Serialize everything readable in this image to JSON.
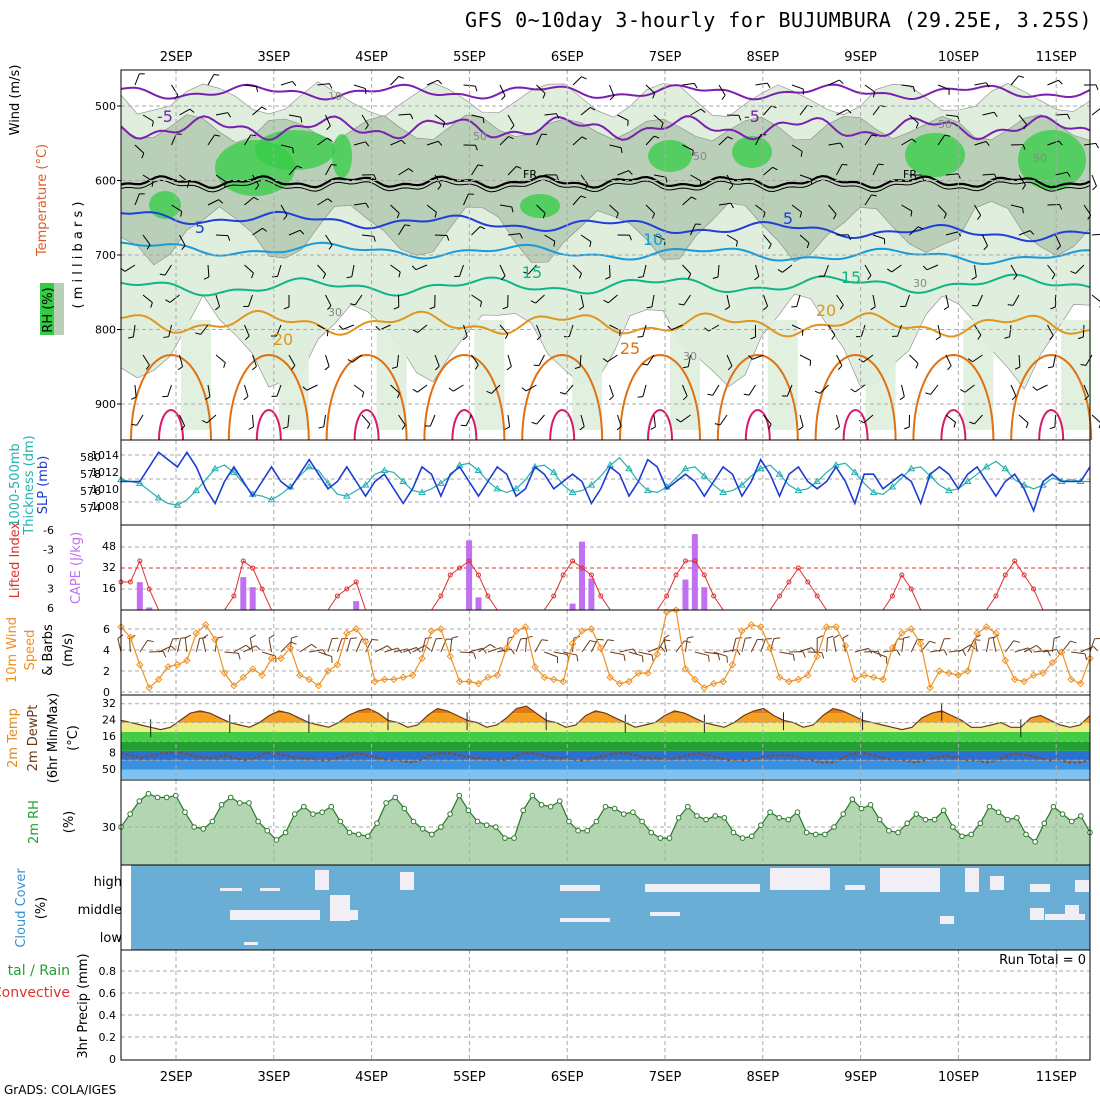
{
  "title": "GFS 0~10day 3-hourly for BUJUMBURA (29.25E, 3.25S)",
  "footer": "GrADS: COLA/IGES",
  "dates": [
    "2SEP",
    "3SEP",
    "4SEP",
    "5SEP",
    "6SEP",
    "7SEP",
    "8SEP",
    "9SEP",
    "10SEP",
    "11SEP"
  ],
  "colors": {
    "rh_fill": "#dfeedd",
    "rh_mid": "#b9cfb7",
    "rh_high": "#33cc44",
    "temp_neg": "#7a1fb0",
    "temp_5": "#1f3fd8",
    "temp_10": "#1a9ad8",
    "temp_15": "#10b585",
    "temp_20": "#e0961e",
    "temp_25": "#e07010",
    "freezing": "#000000",
    "slp": "#1c3cd4",
    "thickness": "#25b0b0",
    "cape": "#c070f0",
    "lifted": "#e03030",
    "wind_speed": "#f09020",
    "barb": "#6b3a1a",
    "temp2m": "#f09020",
    "dewpt": "#6b3a1a",
    "rh2m": "#8cbf88",
    "cloud": "#6aaed6",
    "cloud_gap": "#f2eef5"
  },
  "panels": {
    "upper": {
      "ylabel_wind": "Wind (m/s)",
      "ylabel_temp": "Temperature (°C)",
      "ylabel_rh": "RH (%)",
      "ylabel_p": "( m i l l i b a r s )",
      "yticks": [
        "500",
        "600",
        "700",
        "800",
        "900"
      ],
      "contour_labels": [
        "-5",
        "-5",
        "5",
        "5",
        "10",
        "15",
        "15",
        "20",
        "20",
        "25",
        "FR",
        "FR",
        "50",
        "50",
        "50",
        "50",
        "30",
        "30",
        "30",
        "10"
      ]
    },
    "slp": {
      "ylabel_a": "1000-500mb",
      "ylabel_b": "Thickness (dm)",
      "ylabel_c": "SLP (mb)",
      "ticks_left": [
        "580",
        "578",
        "576",
        "574"
      ],
      "ticks_right": [
        "1014",
        "1012",
        "1010",
        "1008"
      ]
    },
    "cape": {
      "ylabel_a": "Lifted Index",
      "ylabel_b": "CAPE (J/kg)",
      "ticks_left": [
        "-6",
        "-3",
        "0",
        "3",
        "6"
      ],
      "ticks_right": [
        "48",
        "32",
        "16"
      ]
    },
    "wind": {
      "ylabel_a": "10m Wind",
      "ylabel_b": "Speed",
      "ylabel_c": "& Barbs",
      "ylabel_d": "(m/s)",
      "ticks": [
        "6",
        "4",
        "2",
        "0"
      ]
    },
    "temp": {
      "ylabel_a": "2m Temp",
      "ylabel_b": "2m DewPt",
      "ylabel_c": "(6hr Min/Max)",
      "ylabel_d": "(°C)",
      "ticks": [
        "32",
        "24",
        "16",
        "8",
        "50"
      ]
    },
    "rh": {
      "ylabel_a": "2m RH",
      "ylabel_b": "(%)",
      "ticks": [
        "30"
      ]
    },
    "cloud": {
      "ylabel_a": "Cloud Cover",
      "ylabel_b": "(%)",
      "levels": [
        "high",
        "middle",
        "low"
      ]
    },
    "precip": {
      "ylabel_a": "tal / Rain",
      "ylabel_b": "Convective",
      "ylabel_c": "3hr Precip (mm)",
      "ticks": [
        "0.8",
        "0.6",
        "0.4",
        "0.2",
        "0"
      ],
      "run_total": "Run Total = 0"
    }
  },
  "chart_data": [
    {
      "type": "line",
      "panel": "sea level pressure and 1000-500mb thickness",
      "x_step_hours": 3,
      "series": [
        {
          "name": "SLP (mb)",
          "values": [
            1011,
            1011,
            1011,
            1013,
            1015,
            1014,
            1013,
            1015,
            1013,
            1010,
            1008,
            1011,
            1013,
            1011,
            1009,
            1011,
            1013,
            1011,
            1010,
            1012,
            1014,
            1012,
            1010,
            1011,
            1013,
            1011,
            1009,
            1011,
            1012,
            1010,
            1008,
            1010,
            1013,
            1012,
            1009,
            1012,
            1013,
            1011,
            1009,
            1011,
            1013,
            1012,
            1009,
            1010,
            1013,
            1012,
            1010,
            1011,
            1012,
            1011,
            1008,
            1010,
            1013,
            1012,
            1009,
            1011,
            1014,
            1013,
            1010,
            1011,
            1012,
            1011,
            1009,
            1011,
            1013,
            1012,
            1009,
            1011,
            1014,
            1012,
            1009,
            1012,
            1013,
            1011,
            1010,
            1011,
            1013,
            1011,
            1008,
            1012,
            1012,
            1010,
            1011,
            1012,
            1011,
            1008,
            1012,
            1013,
            1012,
            1010,
            1012,
            1013,
            1011,
            1009,
            1011,
            1012,
            1010,
            1007,
            1011,
            1012,
            1011,
            1011,
            1011,
            1013
          ]
        },
        {
          "name": "Thickness (dm)",
          "values": [
            577.2,
            577.0,
            576.8,
            576.0,
            575.2,
            574.6,
            574.4,
            575.0,
            576.0,
            577.2,
            578.4,
            578.8,
            578.0,
            576.8,
            575.6,
            575.4,
            575.0,
            575.6,
            576.4,
            577.6,
            578.6,
            578.2,
            576.8,
            575.6,
            575.4,
            576.0,
            576.6,
            577.8,
            578.2,
            578.0,
            577.0,
            576.0,
            575.8,
            576.2,
            576.8,
            577.6,
            578.8,
            579.0,
            578.2,
            577.0,
            576.2,
            575.8,
            576.2,
            577.2,
            578.6,
            578.8,
            578.0,
            576.6,
            575.8,
            576.0,
            576.6,
            577.6,
            578.8,
            579.6,
            578.4,
            577.0,
            576.0,
            575.8,
            576.4,
            577.4,
            578.4,
            578.6,
            577.6,
            576.6,
            575.8,
            576.0,
            576.6,
            577.6,
            578.4,
            578.8,
            577.8,
            576.6,
            576.0,
            576.2,
            577.0,
            578.0,
            578.8,
            579.0,
            578.0,
            576.8,
            575.8,
            575.6,
            576.4,
            577.4,
            578.4,
            578.6,
            577.6,
            576.6,
            576.0,
            576.2,
            577.0,
            577.8,
            578.6,
            579.2,
            578.4,
            577.2,
            576.6,
            576.2,
            576.6,
            577.4,
            577.0,
            577.2,
            577.0,
            577.0
          ]
        }
      ],
      "ylim_slp": [
        1006,
        1016
      ],
      "ylim_thickness": [
        573,
        581
      ]
    },
    {
      "type": "bar",
      "panel": "CAPE and Lifted Index",
      "x_step_hours": 3,
      "series": [
        {
          "name": "CAPE (J/kg)",
          "values": [
            0,
            0,
            22,
            2,
            0,
            0,
            0,
            0,
            0,
            0,
            0,
            0,
            0,
            26,
            18,
            0,
            0,
            0,
            0,
            0,
            0,
            0,
            0,
            0,
            0,
            7,
            0,
            0,
            0,
            0,
            0,
            0,
            0,
            0,
            0,
            0,
            0,
            55,
            10,
            0,
            0,
            0,
            0,
            0,
            0,
            0,
            0,
            0,
            5,
            54,
            25,
            0,
            0,
            0,
            0,
            0,
            0,
            0,
            0,
            0,
            24,
            60,
            18,
            0,
            0,
            0,
            0,
            0,
            0,
            0,
            0,
            0,
            0,
            0,
            0,
            0,
            0,
            0,
            0,
            0,
            0,
            0,
            0,
            0,
            0,
            0,
            0,
            0,
            0,
            0,
            0,
            0,
            0,
            0,
            0,
            0,
            0,
            0,
            0,
            0,
            0,
            0,
            0,
            0
          ]
        },
        {
          "name": "Lifted Index",
          "values": [
            2,
            2,
            -1,
            3,
            6,
            6,
            6,
            6,
            6,
            6,
            6,
            6,
            4,
            -1,
            0,
            3,
            6,
            6,
            6,
            6,
            6,
            6,
            6,
            4,
            3,
            2,
            6,
            6,
            6,
            6,
            6,
            6,
            6,
            6,
            4,
            1,
            0,
            -1,
            1,
            4,
            6,
            6,
            6,
            6,
            6,
            6,
            4,
            1,
            -1,
            0,
            1,
            4,
            6,
            6,
            6,
            6,
            6,
            6,
            4,
            1,
            -1,
            -1,
            1,
            4,
            6,
            6,
            6,
            6,
            6,
            6,
            4,
            2,
            0,
            2,
            4,
            6,
            6,
            6,
            6,
            6,
            6,
            6,
            4,
            1,
            3,
            6,
            6,
            6,
            6,
            6,
            6,
            6,
            6,
            4,
            1,
            -1,
            1,
            3,
            6,
            6,
            6,
            6,
            6,
            6
          ]
        }
      ],
      "ylim_cape": [
        0,
        64
      ],
      "ylim_lifted_index": [
        -6,
        6
      ]
    },
    {
      "type": "line",
      "panel": "10m wind speed",
      "x_step_hours": 3,
      "series": [
        {
          "name": "Speed (m/s)",
          "values": [
            6.2,
            5.2,
            2.6,
            0.4,
            1.2,
            2.4,
            2.6,
            3.0,
            5.6,
            6.4,
            5.0,
            1.8,
            0.6,
            1.4,
            2.2,
            1.6,
            3.2,
            3.2,
            4.2,
            1.6,
            1.2,
            0.6,
            2.0,
            2.6,
            5.6,
            6.0,
            4.8,
            1.0,
            1.2,
            1.2,
            1.4,
            1.6,
            3.2,
            5.8,
            6.0,
            3.4,
            1.0,
            1.0,
            0.8,
            1.4,
            1.6,
            4.2,
            5.8,
            6.2,
            2.4,
            1.4,
            1.2,
            1.0,
            4.6,
            5.8,
            6.0,
            4.2,
            1.4,
            0.8,
            1.0,
            1.8,
            1.8,
            3.6,
            7.6,
            7.8,
            2.2,
            1.2,
            0.4,
            0.8,
            1.0,
            2.6,
            5.8,
            6.4,
            6.2,
            4.2,
            1.4,
            1.0,
            1.2,
            1.6,
            3.4,
            6.2,
            6.2,
            4.4,
            1.2,
            1.6,
            1.4,
            1.2,
            4.2,
            5.6,
            6.0,
            4.6,
            0.4,
            2.0,
            1.8,
            1.6,
            2.0,
            5.6,
            6.2,
            5.6,
            3.0,
            1.2,
            1.0,
            1.6,
            1.8,
            2.8,
            3.8,
            1.2,
            0.8,
            3.2
          ]
        }
      ],
      "ylim": [
        0,
        8
      ]
    },
    {
      "type": "area",
      "panel": "2m temperature and dew point",
      "x_step_hours": 3,
      "series": [
        {
          "name": "2m Temp (°C)",
          "values": [
            25,
            24,
            23,
            22,
            21,
            22,
            25,
            28,
            29,
            28,
            26,
            24,
            23,
            22,
            24,
            27,
            29,
            28,
            26,
            24,
            23,
            22,
            24,
            27,
            29,
            30,
            28,
            25,
            24,
            22,
            23,
            27,
            30,
            29,
            27,
            25,
            24,
            22,
            23,
            26,
            30,
            31,
            28,
            25,
            24,
            22,
            23,
            27,
            29,
            28,
            26,
            24,
            22,
            23,
            24,
            27,
            29,
            28,
            26,
            24,
            23,
            22,
            24,
            27,
            29,
            30,
            27,
            25,
            24,
            22,
            23,
            27,
            30,
            29,
            27,
            25,
            24,
            23,
            22,
            21,
            22,
            26,
            28,
            29,
            27,
            25,
            22,
            22,
            23,
            24,
            22,
            22,
            26,
            27,
            25,
            23,
            22,
            23,
            27
          ]
        },
        {
          "name": "2m DewPt (°C)",
          "values": [
            11,
            10,
            9,
            10,
            11,
            11,
            11,
            10,
            9,
            9,
            10,
            9,
            8,
            9,
            11,
            11,
            10,
            9,
            9,
            8,
            8,
            9,
            10,
            11,
            10,
            9,
            8,
            8,
            7,
            8,
            10,
            11,
            11,
            10,
            9,
            9,
            8,
            8,
            9,
            11,
            11,
            10,
            9,
            9,
            8,
            8,
            9,
            10,
            11,
            11,
            10,
            9,
            9,
            8,
            9,
            10,
            11,
            10,
            9,
            8,
            8,
            8,
            9,
            10,
            10,
            10,
            9,
            8,
            7,
            7,
            9,
            11,
            11,
            10,
            9,
            8,
            8,
            7,
            8,
            9,
            10,
            9,
            8,
            8,
            7,
            8,
            10,
            11,
            10,
            9,
            8,
            8,
            7,
            7,
            8
          ]
        }
      ],
      "ylim": [
        0,
        34
      ]
    },
    {
      "type": "area",
      "panel": "2m relative humidity",
      "x_step_hours": 3,
      "series": [
        {
          "name": "2m RH (%)",
          "values": [
            30,
            37,
            44,
            48,
            46,
            46,
            47,
            38,
            30,
            29,
            33,
            42,
            46,
            43,
            43,
            33,
            28,
            23,
            27,
            37,
            41,
            37,
            38,
            41,
            33,
            27,
            26,
            25,
            32,
            43,
            46,
            40,
            33,
            29,
            26,
            30,
            37,
            47,
            39,
            33,
            31,
            30,
            24,
            24,
            39,
            47,
            42,
            41,
            44,
            33,
            28,
            28,
            33,
            41,
            40,
            37,
            38,
            33,
            27,
            24,
            24,
            35,
            41,
            36,
            34,
            36,
            35,
            27,
            24,
            25,
            31,
            38,
            35,
            34,
            38,
            27,
            26,
            26,
            30,
            37,
            45,
            40,
            42,
            34,
            28,
            27,
            32,
            37,
            34,
            34,
            39,
            30,
            25,
            26,
            32,
            41,
            38,
            34,
            35,
            26,
            22,
            32,
            41,
            37,
            33,
            36,
            27
          ]
        }
      ],
      "ylim": [
        10,
        55
      ]
    },
    {
      "type": "bar",
      "panel": "cloud cover",
      "categories": [
        "high",
        "middle",
        "low"
      ],
      "note": "cloud cover shown as three stacked layers across the forecast period"
    },
    {
      "type": "line",
      "panel": "3hr precipitation",
      "series": [
        {
          "name": "3hr Precip (mm)",
          "values": [
            0
          ]
        }
      ],
      "ylim": [
        0,
        1
      ]
    }
  ]
}
